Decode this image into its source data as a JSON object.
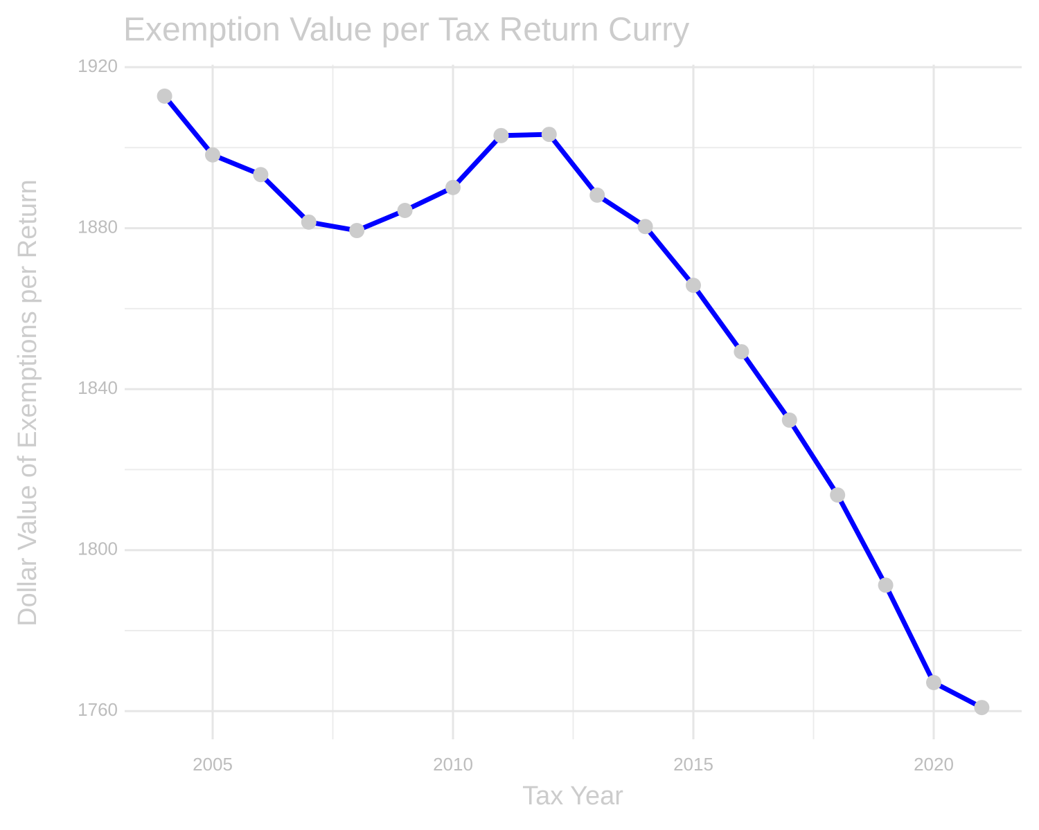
{
  "chart_data": {
    "type": "line",
    "title": "Exemption Value per Tax Return Curry",
    "x_label": "Tax Year",
    "y_label": "Dollar Value of Exemptions per Return",
    "x": [
      2004,
      2005,
      2006,
      2007,
      2008,
      2009,
      2010,
      2011,
      2012,
      2013,
      2014,
      2015,
      2016,
      2017,
      2018,
      2019,
      2020,
      2021
    ],
    "series": [
      {
        "name": "Curry",
        "color": "#0000ff",
        "marker_color": "#cccccc",
        "values": [
          1912.8,
          1898.2,
          1893.3,
          1881.5,
          1879.4,
          1884.4,
          1890.1,
          1903.0,
          1903.3,
          1888.2,
          1880.4,
          1865.8,
          1849.3,
          1832.3,
          1813.7,
          1791.3,
          1767.1,
          1760.9
        ]
      }
    ],
    "xlim": [
      2003.17,
      2021.83
    ],
    "xticks": [
      2005,
      2010,
      2015,
      2020
    ],
    "x_minor_ticks": [
      2007.5,
      2012.5,
      2017.5
    ],
    "ylim": [
      1753,
      1920.6
    ],
    "yticks": [
      1760,
      1800,
      1840,
      1880,
      1920
    ],
    "y_minor_ticks": [
      1780,
      1820,
      1860,
      1900
    ],
    "grid": true
  }
}
